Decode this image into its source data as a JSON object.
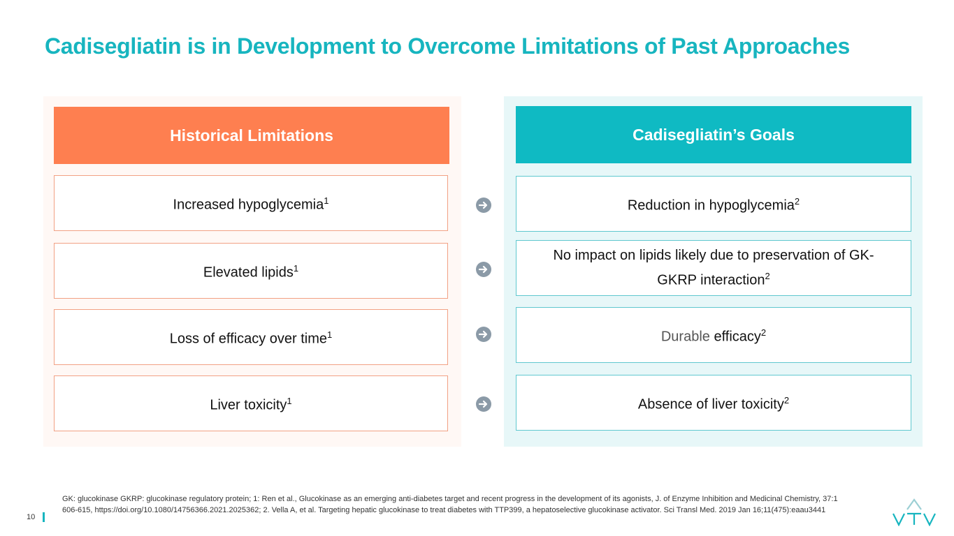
{
  "title": "Cadisegliatin is in Development to Overcome Limitations of Past Approaches",
  "left": {
    "header": "Historical Limitations",
    "items": [
      {
        "text": "Increased hypoglycemia",
        "sup": "1"
      },
      {
        "text": "Elevated lipids",
        "sup": "1"
      },
      {
        "text": "Loss of efficacy over time",
        "sup": "1"
      },
      {
        "text": "Liver toxicity",
        "sup": "1"
      }
    ]
  },
  "right": {
    "header": "Cadisegliatin’s Goals",
    "items": [
      {
        "text": "Reduction in hypoglycemia",
        "sup": "2"
      },
      {
        "text": "No impact on lipids likely due to preservation of GK-GKRP interaction",
        "sup": "2"
      },
      {
        "lead": "Durable",
        "text": "efficacy",
        "sup": "2"
      },
      {
        "text": "Absence of liver toxicity",
        "sup": "2"
      }
    ]
  },
  "footnote": "GK: glucokinase GKRP: glucokinase regulatory protein; 1: Ren et al., Glucokinase as an emerging anti-diabetes target and recent progress in the development of its agonists, J. of Enzyme Inhibition and Medicinal Chemistry, 37:1 606-615, https://doi.org/10.1080/14756366.2021.2025362; 2. Vella A, et al. Targeting hepatic glucokinase to treat diabetes with TTP399, a hepatoselective glucokinase activator. Sci Transl Med. 2019 Jan 16;11(475):eaau3441",
  "page_number": "10"
}
